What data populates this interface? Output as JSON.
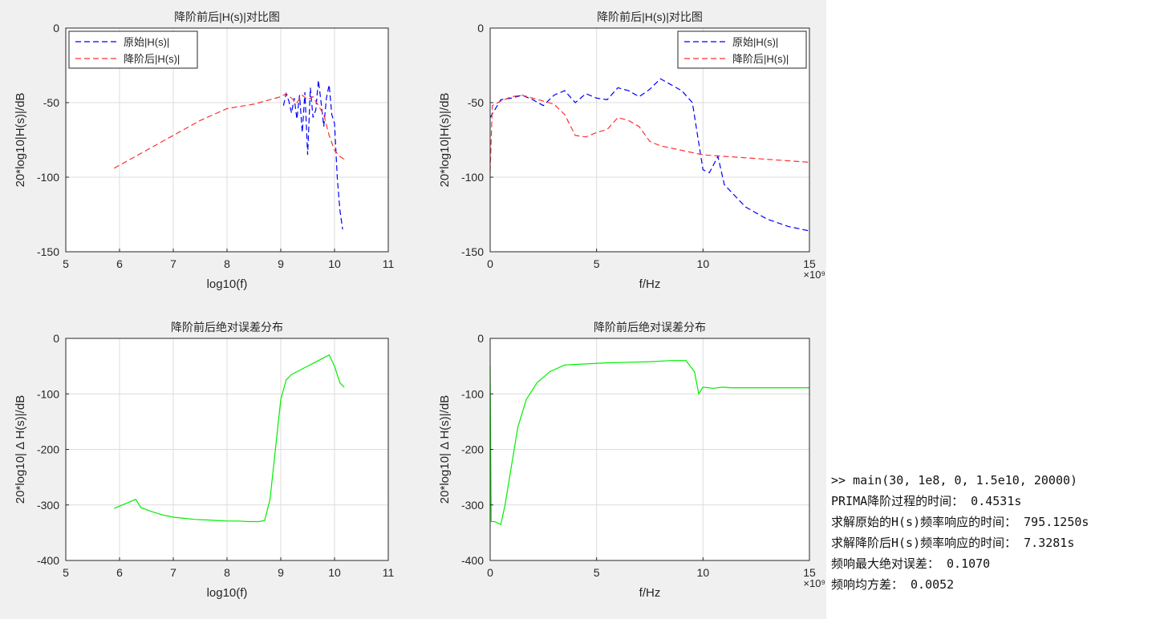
{
  "chart_data": [
    {
      "type": "line",
      "title": "降阶前后|H(s)|对比图",
      "xlabel": "log10(f)",
      "ylabel": "20*log10|H(s)|/dB",
      "xlim": [
        5,
        11
      ],
      "ylim": [
        -150,
        0
      ],
      "xticks": [
        5,
        6,
        7,
        8,
        9,
        10,
        11
      ],
      "yticks": [
        0,
        -50,
        -100,
        -150
      ],
      "x_exponent": "",
      "grid": true,
      "legend": "top-left",
      "series": [
        {
          "name": "原始|H(s)|",
          "color": "#0000ff",
          "dash": true,
          "x": [
            9.05,
            9.1,
            9.15,
            9.2,
            9.25,
            9.3,
            9.35,
            9.4,
            9.45,
            9.5,
            9.55,
            9.6,
            9.65,
            9.7,
            9.75,
            9.8,
            9.85,
            9.9,
            9.95,
            10.0,
            10.05,
            10.1,
            10.15
          ],
          "y": [
            -52,
            -44,
            -49,
            -57,
            -47,
            -61,
            -45,
            -70,
            -43,
            -85,
            -40,
            -60,
            -55,
            -35,
            -50,
            -66,
            -47,
            -38,
            -58,
            -64,
            -100,
            -122,
            -135
          ]
        },
        {
          "name": "降阶后|H(s)|",
          "color": "#ff3030",
          "dash": true,
          "x": [
            5.9,
            6.5,
            7.0,
            7.5,
            8.0,
            8.5,
            9.0,
            9.1,
            9.2,
            9.3,
            9.4,
            9.5,
            9.6,
            9.7,
            9.8,
            9.9,
            10.0,
            10.1,
            10.18
          ],
          "y": [
            -94,
            -82,
            -72,
            -62,
            -54,
            -51,
            -46,
            -44,
            -47,
            -50,
            -45,
            -48,
            -46,
            -52,
            -58,
            -72,
            -82,
            -86,
            -88
          ]
        }
      ]
    },
    {
      "type": "line",
      "title": "降阶前后|H(s)|对比图",
      "xlabel": "f/Hz",
      "ylabel": "20*log10|H(s)|/dB",
      "xlim": [
        0,
        15
      ],
      "ylim": [
        -150,
        0
      ],
      "xticks": [
        0,
        5,
        10,
        15
      ],
      "yticks": [
        0,
        -50,
        -100,
        -150
      ],
      "x_exponent": "×10⁹",
      "grid": true,
      "legend": "top-right",
      "series": [
        {
          "name": "原始|H(s)|",
          "color": "#0000ff",
          "dash": true,
          "x": [
            0,
            0.5,
            1,
            1.5,
            2,
            2.5,
            3,
            3.5,
            4,
            4.5,
            5,
            5.5,
            6,
            6.5,
            7,
            7.5,
            8,
            8.5,
            9,
            9.5,
            10,
            10.3,
            10.7,
            11,
            12,
            13,
            14,
            15
          ],
          "y": [
            -60,
            -48,
            -47,
            -45,
            -48,
            -52,
            -45,
            -42,
            -50,
            -44,
            -47,
            -48,
            -40,
            -42,
            -46,
            -41,
            -34,
            -38,
            -42,
            -50,
            -95,
            -97,
            -86,
            -105,
            -120,
            -128,
            -133,
            -136
          ]
        },
        {
          "name": "降阶后|H(s)|",
          "color": "#ff3030",
          "dash": true,
          "x": [
            0,
            0.1,
            0.5,
            1,
            1.5,
            2,
            2.5,
            3,
            3.5,
            4,
            4.5,
            5,
            5.5,
            6,
            6.5,
            7,
            7.5,
            8,
            9,
            10,
            11,
            12,
            13,
            14,
            15
          ],
          "y": [
            -96,
            -52,
            -49,
            -46,
            -45,
            -47,
            -49,
            -51,
            -58,
            -72,
            -73,
            -70,
            -68,
            -60,
            -62,
            -66,
            -76,
            -79,
            -82,
            -85,
            -86,
            -87,
            -88,
            -89,
            -90
          ]
        }
      ]
    },
    {
      "type": "line",
      "title": "降阶前后绝对误差分布",
      "xlabel": "log10(f)",
      "ylabel": "20*log10| Δ H(s)|/dB",
      "xlim": [
        5,
        11
      ],
      "ylim": [
        -400,
        0
      ],
      "xticks": [
        5,
        6,
        7,
        8,
        9,
        10,
        11
      ],
      "yticks": [
        0,
        -100,
        -200,
        -300,
        -400
      ],
      "x_exponent": "",
      "grid": true,
      "legend": "none",
      "series": [
        {
          "name": "",
          "color": "#00ee00",
          "dash": false,
          "x": [
            5.9,
            6.1,
            6.3,
            6.4,
            6.6,
            6.8,
            7.0,
            7.2,
            7.4,
            7.6,
            7.8,
            8.0,
            8.2,
            8.4,
            8.6,
            8.7,
            8.8,
            8.9,
            9.0,
            9.1,
            9.2,
            9.3,
            9.4,
            9.5,
            9.6,
            9.7,
            9.8,
            9.9,
            10.0,
            10.1,
            10.18
          ],
          "y": [
            -306,
            -298,
            -290,
            -305,
            -312,
            -318,
            -322,
            -324,
            -326,
            -327,
            -328,
            -329,
            -329,
            -330,
            -330,
            -328,
            -290,
            -200,
            -110,
            -75,
            -65,
            -60,
            -55,
            -50,
            -45,
            -40,
            -35,
            -30,
            -50,
            -80,
            -88
          ]
        }
      ]
    },
    {
      "type": "line",
      "title": "降阶前后绝对误差分布",
      "xlabel": "f/Hz",
      "ylabel": "20*log10| Δ H(s)|/dB",
      "xlim": [
        0,
        15
      ],
      "ylim": [
        -400,
        0
      ],
      "xticks": [
        0,
        5,
        10,
        15
      ],
      "yticks": [
        0,
        -100,
        -200,
        -300,
        -400
      ],
      "x_exponent": "×10⁹",
      "grid": true,
      "legend": "none",
      "series": [
        {
          "name": "",
          "color": "#00ee00",
          "dash": false,
          "x": [
            0,
            0.05,
            0.2,
            0.5,
            0.7,
            1.0,
            1.3,
            1.7,
            2.2,
            2.8,
            3.5,
            4.5,
            5.5,
            6.5,
            7.5,
            8.5,
            9.2,
            9.6,
            9.8,
            10.0,
            10.5,
            10.9,
            11.3,
            12,
            13,
            14,
            15
          ],
          "y": [
            -50,
            -330,
            -330,
            -335,
            -300,
            -230,
            -160,
            -110,
            -80,
            -60,
            -48,
            -46,
            -44,
            -43,
            -42,
            -40,
            -40,
            -60,
            -100,
            -88,
            -90,
            -88,
            -89,
            -89,
            -89,
            -89,
            -89
          ]
        }
      ]
    }
  ],
  "console": {
    "lines": [
      ">> main(30, 1e8, 0, 1.5e10, 20000)",
      "PRIMA降阶过程的时间： 0.4531s",
      "求解原始的H(s)频率响应的时间： 795.1250s",
      "求解降阶后H(s)频率响应的时间： 7.3281s",
      "频响最大绝对误差： 0.1070",
      "频响均方差： 0.0052"
    ]
  }
}
